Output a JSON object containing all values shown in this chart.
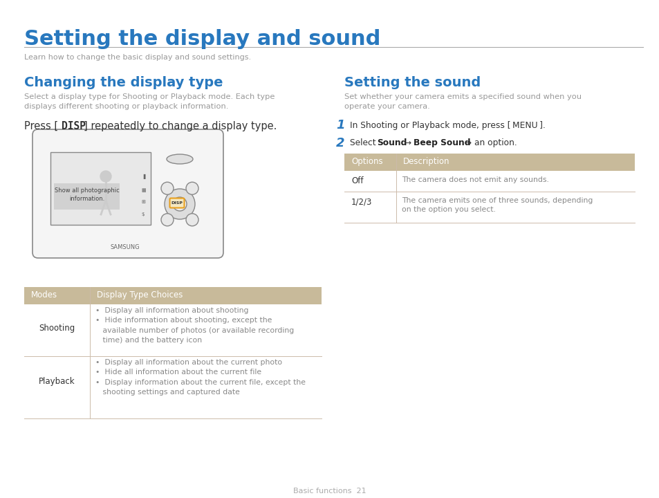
{
  "title": "Setting the display and sound",
  "subtitle": "Learn how to change the basic display and sound settings.",
  "title_color": "#2878BE",
  "subtitle_color": "#999999",
  "section1_heading": "Changing the display type",
  "section1_body1": "Select a display type for Shooting or Playback mode. Each type\ndisplays different shooting or playback information.",
  "section1_press": "Press [ DISP ] repeatedly to change a display type.",
  "section2_heading": "Setting the sound",
  "section2_body1": "Set whether your camera emits a specified sound when you\noperate your camera.",
  "section2_step1": "In Shooting or Playback mode, press [ MENU ].",
  "section2_step2": "Select Sound → Beep Sound → an option.",
  "table1_header": [
    "Modes",
    "Display Type Choices"
  ],
  "table1_rows": [
    [
      "Shooting",
      "•  Display all information about shooting\n•  Hide information about shooting, except the\n   available number of photos (or available recording\n   time) and the battery icon"
    ],
    [
      "Playback",
      "•  Display all information about the current photo\n•  Hide all information about the current file\n•  Display information about the current file, except the\n   shooting settings and captured date"
    ]
  ],
  "table2_header": [
    "Options",
    "Description"
  ],
  "table2_rows": [
    [
      "Off",
      "The camera does not emit any sounds."
    ],
    [
      "1/2/3",
      "The camera emits one of three sounds, depending\non the option you select."
    ]
  ],
  "table_header_bg": "#C8BA9A",
  "table_header_fg": "#FFFFFF",
  "table_row_bg": "#FFFFFF",
  "table_row_fg": "#666666",
  "table_border_color": "#CCBBAA",
  "footer_text": "Basic functions  21",
  "heading_color": "#2878BE",
  "body_color": "#999999",
  "press_color": "#333333",
  "step_color": "#333333",
  "step_num_color": "#2878BE",
  "bold_color": "#222222"
}
